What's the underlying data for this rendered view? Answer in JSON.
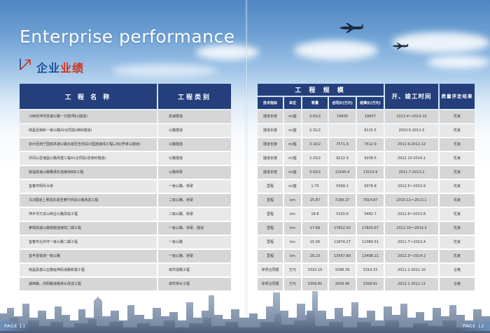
{
  "header": {
    "title_en": "Enterprise performance",
    "title_cn_part1": "企业",
    "title_cn_part2": "业绩"
  },
  "left_table": {
    "headers": [
      "工 程 名 称",
      "工程类别"
    ],
    "rows": [
      [
        "江西省萍洪高速公路一分部(明山隧道)",
        "高速隧道"
      ],
      [
        "南昌至峡岭一级公路A2合同段(峡岭隧道)",
        "公路隧道"
      ],
      [
        "泉州至南宁国家高速公路石城至吉安段兴国连接线工程L2标(罗家山隧道)",
        "公路隧道"
      ],
      [
        "井冈山至瑞昌公路改建工程A1合同段(张家岭隧道)",
        "公路隧道"
      ],
      [
        "梨温高速公路鹰潭东连接线B标工程",
        "公路桥梁"
      ],
      [
        "宜春市明月大桥",
        "一级公路、桥梁"
      ],
      [
        "319国道上栗县彭高至黄竹桥段公路改造工程",
        "二级公路、桥梁"
      ],
      [
        "萍乡市万龙山林业公路改造工程",
        "二级公路、桥梁"
      ],
      [
        "奉铜高速公路铜鼓连接线二期工程",
        "一级公路、桥梁、隧道"
      ],
      [
        "宜春市北外环一级公路二期工程",
        "一级公路"
      ],
      [
        "宜丰县铁城一级公路",
        "一级公路、桥梁"
      ],
      [
        "南昌县富山五路延伸段道路新建工程",
        "城市道路工程"
      ],
      [
        "莲西路、向阳路道路排水改造工程",
        "城市排水工程"
      ]
    ]
  },
  "right_table": {
    "group_header": "工 程 规 模",
    "time_header": "开、竣工时间",
    "quality_header": "质量评定结果",
    "sub_headers": [
      "技术指标",
      "单位",
      "数量",
      "合同价(万元)",
      "结算价(万元)"
    ],
    "rows": [
      [
        "隧道长度",
        "m/座",
        "3.65/2",
        "16600",
        "16807",
        "2013.4～2014.10",
        "优良"
      ],
      [
        "隧道长度",
        "m/座",
        "2.31/2",
        "",
        "6115.5",
        "2010.5-2011.5",
        "优良"
      ],
      [
        "隧道长度",
        "m/座",
        "3.16/2",
        "7571.9",
        "7512.9",
        "2011.9-2012.12",
        "优良"
      ],
      [
        "隧道长度",
        "m/座",
        "2.20/2",
        "9212.3",
        "9208.5",
        "2012.10-2014.1",
        "优良"
      ],
      [
        "隧道长度",
        "m/座",
        "3.50/2",
        "13290.4",
        "13214.9",
        "2011.7-2013.2",
        "优良"
      ],
      [
        "里程",
        "m/座",
        "1.73",
        "5069.1",
        "5078.8",
        "2012.5～2013.9",
        "优良"
      ],
      [
        "里程",
        "km",
        "25.87",
        "7290.37",
        "7814.87",
        "2010.11～2013.1",
        "优良"
      ],
      [
        "里程",
        "km",
        "18.8",
        "5320.6",
        "5482.7",
        "2012.6～2013.8",
        "优良"
      ],
      [
        "里程",
        "km",
        "17.69",
        "17652.92",
        "17833.67",
        "2012.10～2014.3",
        "优良"
      ],
      [
        "里程",
        "km",
        "15.06",
        "11874.27",
        "11989.51",
        "2011.7～2013.4",
        "优良"
      ],
      [
        "里程",
        "km",
        "20.23",
        "13567.89",
        "13498.21",
        "2012.3～2014.2",
        "优良"
      ],
      [
        "单项合同额",
        "万元",
        "3310.15",
        "3296.39",
        "3310.15",
        "2011.1-2011.10",
        "合格"
      ],
      [
        "单项合同额",
        "万元",
        "3358.81",
        "3509.96",
        "3358.81",
        "2012.1-2012.11",
        "合格"
      ]
    ]
  },
  "footer": {
    "page_left": "PAGE 11",
    "page_right": "PAGE 12"
  },
  "colors": {
    "header_blue": "#243f7c",
    "accent_red": "#d4321f",
    "title_blue": "#1f4f97",
    "row_light": "#e8e8e8",
    "row_dark": "#d6d6d6"
  }
}
